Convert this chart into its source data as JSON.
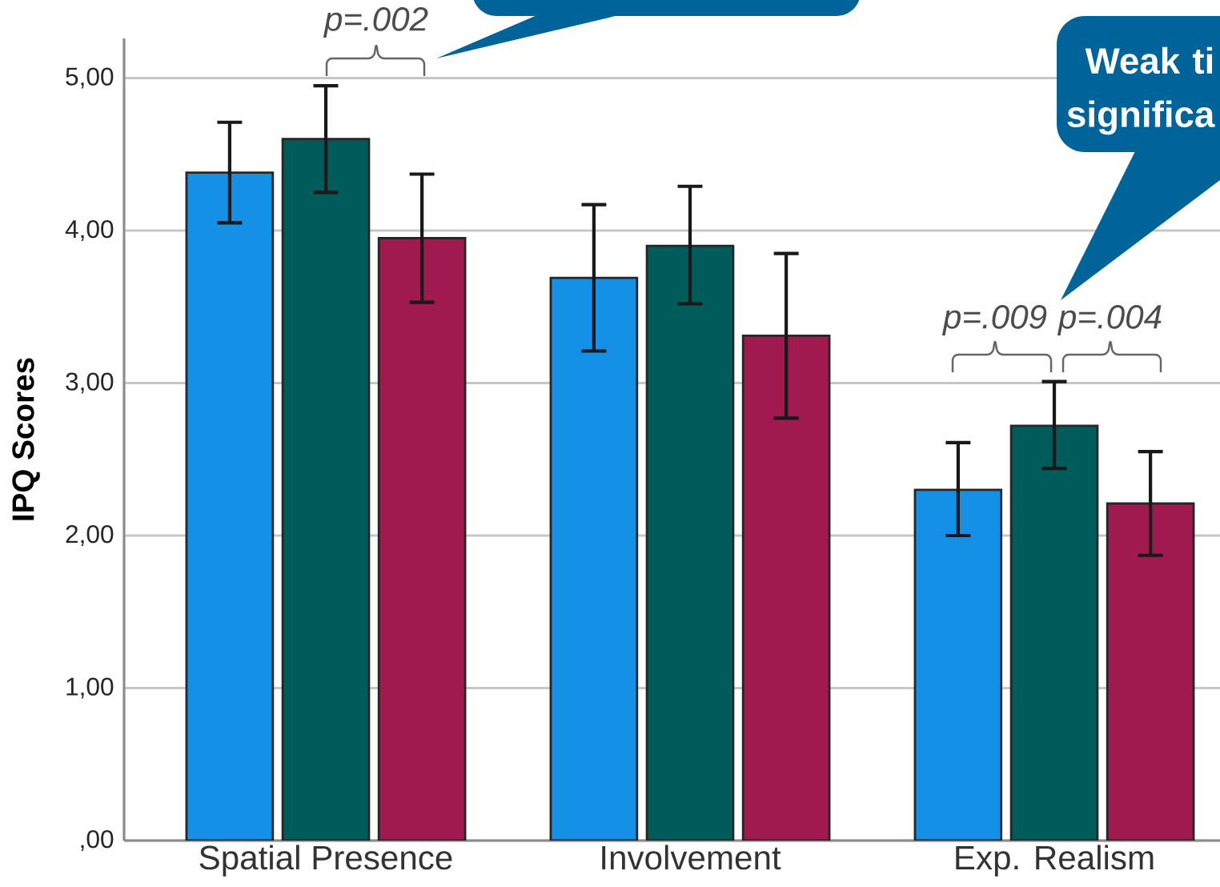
{
  "chart_data": {
    "type": "bar",
    "ylabel": "IPQ Scores",
    "categories": [
      "Spatial Presence",
      "Involvement",
      "Exp. Realism"
    ],
    "series": [
      {
        "color": "#1490e6",
        "values": [
          4.38,
          3.69,
          2.3
        ],
        "errors": [
          [
            4.05,
            4.71
          ],
          [
            3.21,
            4.17
          ],
          [
            2.0,
            2.61
          ]
        ]
      },
      {
        "color": "#005b5b",
        "values": [
          4.6,
          3.9,
          2.72
        ],
        "errors": [
          [
            4.25,
            4.95
          ],
          [
            3.52,
            4.29
          ],
          [
            2.44,
            3.01
          ]
        ]
      },
      {
        "color": "#a0194f",
        "values": [
          3.95,
          3.31,
          2.21
        ],
        "errors": [
          [
            3.53,
            4.37
          ],
          [
            2.77,
            3.85
          ],
          [
            1.87,
            2.55
          ]
        ]
      }
    ],
    "ylim": [
      0,
      5.26
    ],
    "yticks": [
      {
        "value": 0,
        "label": ",00"
      },
      {
        "value": 1,
        "label": "1,00"
      },
      {
        "value": 2,
        "label": "2,00"
      },
      {
        "value": 3,
        "label": "3,00"
      },
      {
        "value": 4,
        "label": "4,00"
      },
      {
        "value": 5,
        "label": "5,00"
      }
    ],
    "grid": "y",
    "annotations": [
      "p=.002",
      "p=.009",
      "p=.004",
      "Weak ti significa"
    ]
  }
}
